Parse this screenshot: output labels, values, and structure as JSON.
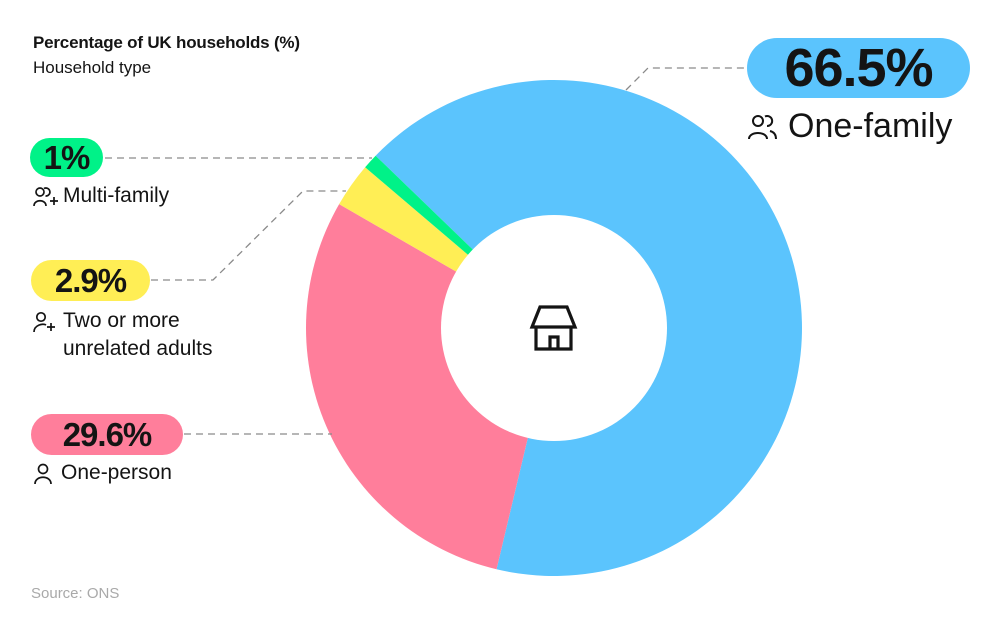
{
  "header": {
    "title": "Percentage of UK households (%)",
    "subtitle": "Household type"
  },
  "footer": {
    "source": "Source: ONS"
  },
  "center_icon": "house-icon",
  "segments": [
    {
      "key": "one_family",
      "label": "One-family",
      "value_label": "66.5%",
      "value": 66.5,
      "color": "#5BC4FD",
      "icon": "two-people-icon"
    },
    {
      "key": "one_person",
      "label": "One-person",
      "value_label": "29.6%",
      "value": 29.6,
      "color": "#FF7E9B",
      "icon": "person-icon"
    },
    {
      "key": "unrelated",
      "label_line1": "Two or more",
      "label_line2": "unrelated adults",
      "value_label": "2.9%",
      "value": 2.9,
      "color": "#FFEE55",
      "icon": "person-add-icon"
    },
    {
      "key": "multi_family",
      "label": "Multi-family",
      "value_label": "1%",
      "value": 1,
      "color": "#00F288",
      "icon": "group-add-icon"
    }
  ],
  "chart_data": {
    "type": "pie",
    "variant": "donut",
    "title": "Percentage of UK households (%)",
    "subtitle": "Household type",
    "categories": [
      "One-family",
      "One-person",
      "Two or more unrelated adults",
      "Multi-family"
    ],
    "values": [
      66.5,
      29.6,
      2.9,
      1
    ],
    "colors": [
      "#5BC4FD",
      "#FF7E9B",
      "#FFEE55",
      "#00F288"
    ],
    "unit": "%",
    "source": "Source: ONS",
    "legend_position": "callout labels"
  }
}
